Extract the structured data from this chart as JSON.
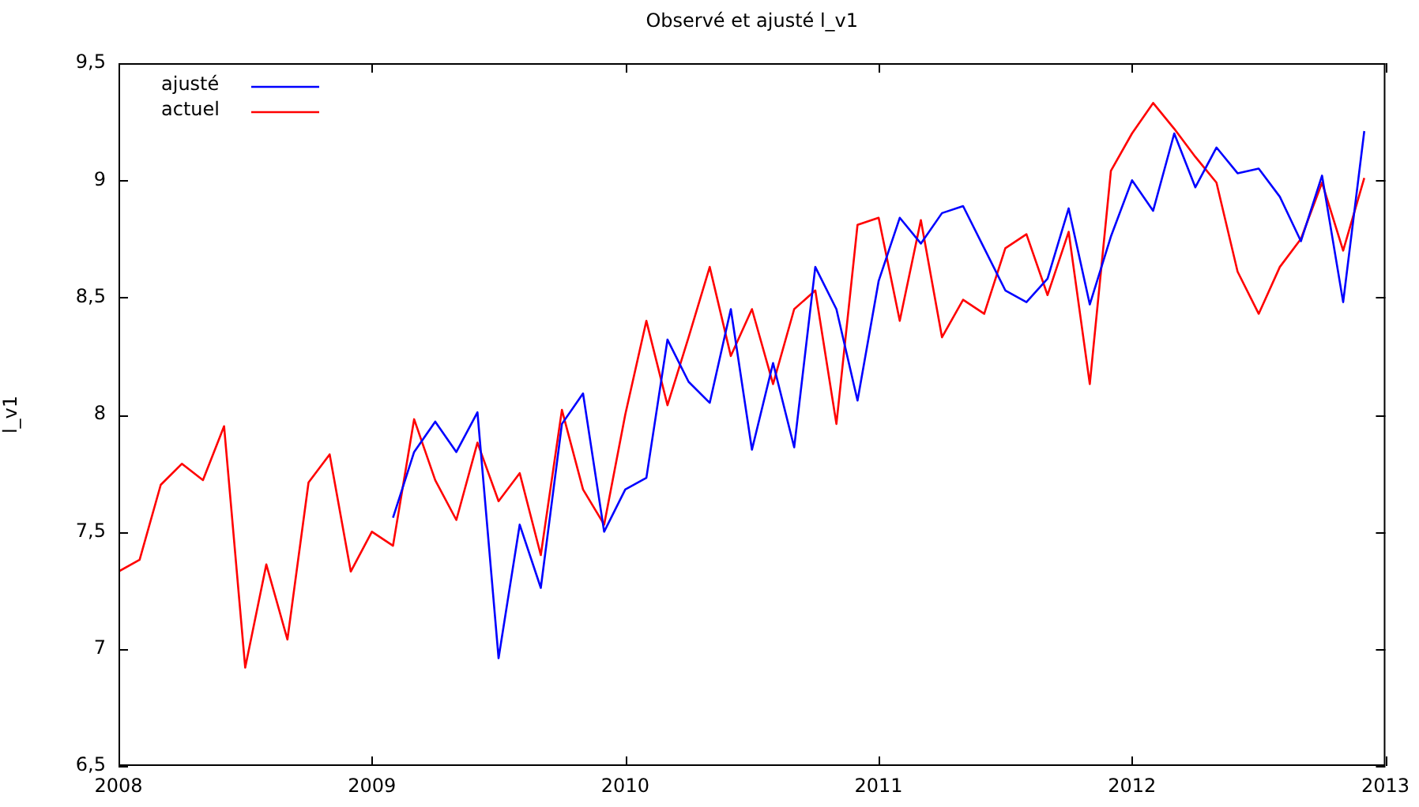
{
  "chart_data": {
    "type": "line",
    "title": "Observé et ajusté l_v1",
    "ylabel": "l_v1",
    "x": [
      "2008-01",
      "2008-02",
      "2008-03",
      "2008-04",
      "2008-05",
      "2008-06",
      "2008-07",
      "2008-08",
      "2008-09",
      "2008-10",
      "2008-11",
      "2008-12",
      "2009-01",
      "2009-02",
      "2009-03",
      "2009-04",
      "2009-05",
      "2009-06",
      "2009-07",
      "2009-08",
      "2009-09",
      "2009-10",
      "2009-11",
      "2009-12",
      "2010-01",
      "2010-02",
      "2010-03",
      "2010-04",
      "2010-05",
      "2010-06",
      "2010-07",
      "2010-08",
      "2010-09",
      "2010-10",
      "2010-11",
      "2010-12",
      "2011-01",
      "2011-02",
      "2011-03",
      "2011-04",
      "2011-05",
      "2011-06",
      "2011-07",
      "2011-08",
      "2011-09",
      "2011-10",
      "2011-11",
      "2011-12",
      "2012-01",
      "2012-02",
      "2012-03",
      "2012-04",
      "2012-05",
      "2012-06",
      "2012-07",
      "2012-08",
      "2012-09",
      "2012-10",
      "2012-11",
      "2012-12"
    ],
    "series": [
      {
        "name": "ajusté",
        "color": "#0000ff",
        "values": [
          null,
          null,
          null,
          null,
          null,
          null,
          null,
          null,
          null,
          null,
          null,
          null,
          null,
          7.56,
          7.84,
          7.97,
          7.84,
          8.01,
          6.96,
          7.53,
          7.26,
          7.96,
          8.09,
          7.5,
          7.68,
          7.73,
          8.32,
          8.14,
          8.05,
          8.45,
          7.85,
          8.22,
          7.86,
          8.63,
          8.45,
          8.06,
          8.57,
          8.84,
          8.73,
          8.86,
          8.89,
          8.71,
          8.53,
          8.48,
          8.58,
          8.88,
          8.47,
          8.76,
          9.0,
          8.87,
          9.2,
          8.97,
          9.14,
          9.03,
          9.05,
          8.93,
          8.74,
          9.02,
          8.48,
          9.21
        ]
      },
      {
        "name": "actuel",
        "color": "#ff0000",
        "values": [
          7.33,
          7.38,
          7.7,
          7.79,
          7.72,
          7.95,
          6.92,
          7.36,
          7.04,
          7.71,
          7.83,
          7.33,
          7.5,
          7.44,
          7.98,
          7.72,
          7.55,
          7.88,
          7.63,
          7.75,
          7.4,
          8.02,
          7.68,
          7.53,
          8.0,
          8.4,
          8.04,
          8.33,
          8.63,
          8.25,
          8.45,
          8.13,
          8.45,
          8.53,
          7.96,
          8.81,
          8.84,
          8.4,
          8.83,
          8.33,
          8.49,
          8.43,
          8.71,
          8.77,
          8.51,
          8.78,
          8.13,
          9.04,
          9.2,
          9.33,
          9.22,
          9.1,
          8.99,
          8.61,
          8.43,
          8.63,
          8.75,
          8.99,
          8.7,
          9.01
        ]
      }
    ],
    "xlim": [
      "2008",
      "2013"
    ],
    "xticks": [
      "2008",
      "2009",
      "2010",
      "2011",
      "2012",
      "2013"
    ],
    "ylim": [
      6.5,
      9.5
    ],
    "yticks": [
      {
        "value": 6.5,
        "label": "6,5"
      },
      {
        "value": 7,
        "label": "7"
      },
      {
        "value": 7.5,
        "label": "7,5"
      },
      {
        "value": 8,
        "label": "8"
      },
      {
        "value": 8.5,
        "label": "8,5"
      },
      {
        "value": 9,
        "label": "9"
      },
      {
        "value": 9.5,
        "label": "9,5"
      }
    ],
    "legend": "top left",
    "grid": false,
    "marker": "none",
    "line_style": "solid"
  }
}
